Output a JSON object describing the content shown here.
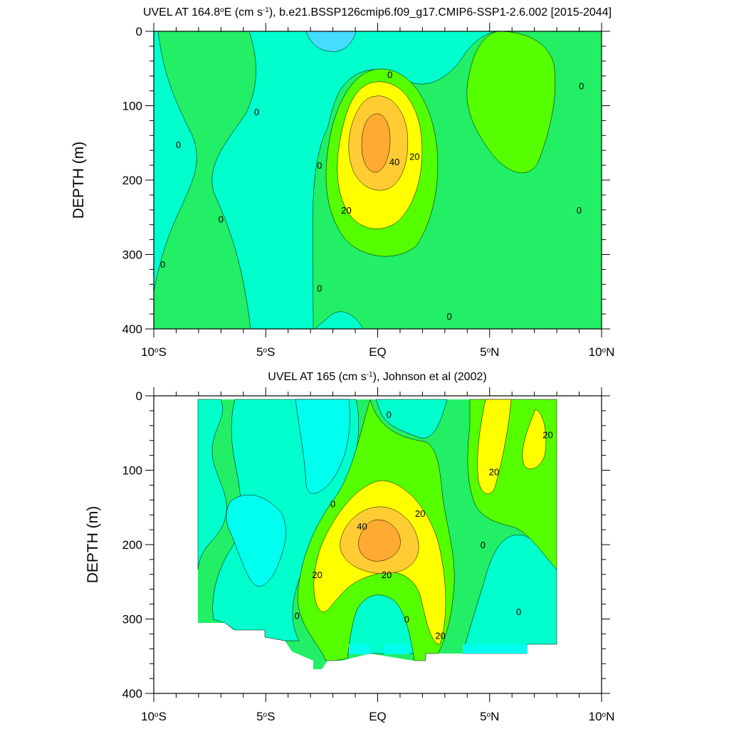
{
  "chart_data": [
    {
      "type": "contour",
      "title_parts": [
        "UVEL AT 164.8",
        "o",
        "E (cm s",
        "-1",
        "), b.e21.BSSP126cmip6.f09_g17.CMIP6-SSP1-2.6.002 [2015-2044]"
      ],
      "ylabel": "DEPTH (m)",
      "xlabel": "",
      "xlim": [
        -10,
        10
      ],
      "ylim": [
        0,
        400
      ],
      "y_reversed": true,
      "xticks": [
        {
          "value": -10,
          "label": "10",
          "sup": "o",
          "suffix": "S"
        },
        {
          "value": -5,
          "label": "5",
          "sup": "o",
          "suffix": "S"
        },
        {
          "value": 0,
          "label": "EQ",
          "sup": "",
          "suffix": ""
        },
        {
          "value": 5,
          "label": "5",
          "sup": "o",
          "suffix": "N"
        },
        {
          "value": 10,
          "label": "10",
          "sup": "o",
          "suffix": "N"
        }
      ],
      "yticks": [
        0,
        100,
        200,
        300,
        400
      ],
      "colors": {
        "lt0": "#00ffcc",
        "neg": "#00ffee",
        "neg2": "#44ddff",
        "band0": "#22ee66",
        "band10": "#55ff00",
        "band20": "#ffff00",
        "band30": "#ffcc33",
        "band40": "#ffaa33"
      },
      "contour_labels": [
        {
          "text": "0",
          "x": 0.55,
          "y": 58
        },
        {
          "text": "0",
          "x": 9.1,
          "y": 73
        },
        {
          "text": "0",
          "x": -5.4,
          "y": 108
        },
        {
          "text": "0",
          "x": -8.9,
          "y": 152
        },
        {
          "text": "0",
          "x": -2.6,
          "y": 180
        },
        {
          "text": "0",
          "x": -7.0,
          "y": 252
        },
        {
          "text": "0",
          "x": 9.0,
          "y": 240
        },
        {
          "text": "0",
          "x": -9.6,
          "y": 313
        },
        {
          "text": "0",
          "x": -2.6,
          "y": 345
        },
        {
          "text": "0",
          "x": 3.2,
          "y": 383
        },
        {
          "text": "40",
          "x": 0.75,
          "y": 175
        },
        {
          "text": "20",
          "x": 1.65,
          "y": 168
        },
        {
          "text": "20",
          "x": -1.4,
          "y": 240
        }
      ]
    },
    {
      "type": "contour",
      "title_parts": [
        "UVEL AT 165 (cm s",
        "-1",
        "), Johnson et al (2002)"
      ],
      "ylabel": "DEPTH (m)",
      "xlabel": "",
      "xlim": [
        -10,
        10
      ],
      "ylim": [
        0,
        400
      ],
      "y_reversed": true,
      "data_range_x": [
        -8,
        8
      ],
      "xticks": [
        {
          "value": -10,
          "label": "10",
          "sup": "o",
          "suffix": "S"
        },
        {
          "value": -5,
          "label": "5",
          "sup": "o",
          "suffix": "S"
        },
        {
          "value": 0,
          "label": "EQ",
          "sup": "",
          "suffix": ""
        },
        {
          "value": 5,
          "label": "5",
          "sup": "o",
          "suffix": "N"
        },
        {
          "value": 10,
          "label": "10",
          "sup": "o",
          "suffix": "N"
        }
      ],
      "yticks": [
        0,
        100,
        200,
        300,
        400
      ],
      "contour_labels": [
        {
          "text": "0",
          "x": 0.5,
          "y": 25
        },
        {
          "text": "20",
          "x": 7.6,
          "y": 52
        },
        {
          "text": "20",
          "x": 5.2,
          "y": 102
        },
        {
          "text": "0",
          "x": -2.0,
          "y": 145
        },
        {
          "text": "20",
          "x": 1.9,
          "y": 158
        },
        {
          "text": "40",
          "x": -0.7,
          "y": 175
        },
        {
          "text": "0",
          "x": 4.7,
          "y": 200
        },
        {
          "text": "20",
          "x": -2.7,
          "y": 240
        },
        {
          "text": "20",
          "x": 0.4,
          "y": 240
        },
        {
          "text": "0",
          "x": -3.6,
          "y": 295
        },
        {
          "text": "0",
          "x": 1.3,
          "y": 300
        },
        {
          "text": "0",
          "x": 6.3,
          "y": 290
        },
        {
          "text": "20",
          "x": 2.8,
          "y": 322
        }
      ]
    }
  ]
}
